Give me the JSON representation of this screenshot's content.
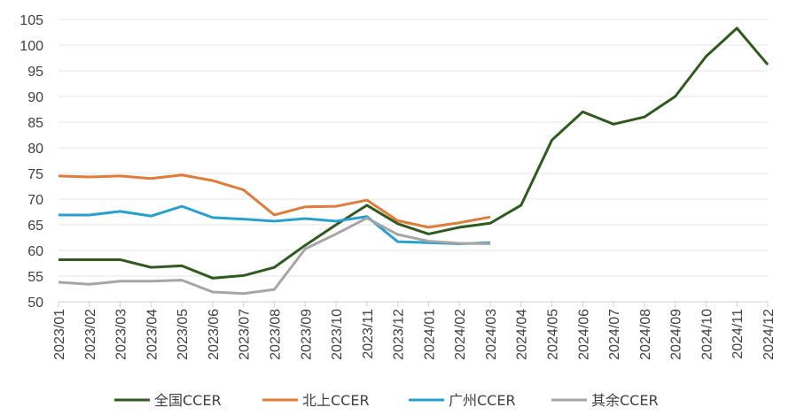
{
  "chart_data": {
    "type": "line",
    "title": "",
    "xlabel": "",
    "ylabel": "",
    "ylim": [
      50,
      105
    ],
    "y_ticks": [
      50,
      55,
      60,
      65,
      70,
      75,
      80,
      85,
      90,
      95,
      100,
      105
    ],
    "grid": "horizontal",
    "legend_position": "bottom",
    "categories": [
      "2023/01",
      "2023/02",
      "2023/03",
      "2023/04",
      "2023/05",
      "2023/06",
      "2023/07",
      "2023/08",
      "2023/09",
      "2023/10",
      "2023/11",
      "2023/12",
      "2024/01",
      "2024/02",
      "2024/03",
      "2024/04",
      "2024/05",
      "2024/06",
      "2024/07",
      "2024/08",
      "2024/09",
      "2024/10",
      "2024/11",
      "2024/12"
    ],
    "series": [
      {
        "name": "全国CCER",
        "color": "#2e5b1e",
        "values": [
          58.2,
          58.2,
          58.2,
          56.7,
          57.0,
          54.6,
          55.1,
          56.7,
          61.0,
          65.0,
          68.8,
          65.2,
          63.2,
          64.5,
          65.3,
          68.8,
          81.5,
          87.0,
          84.6,
          86.0,
          90.0,
          97.8,
          103.3,
          96.2
        ]
      },
      {
        "name": "北上CCER",
        "color": "#e07b39",
        "values": [
          74.5,
          74.3,
          74.5,
          74.0,
          74.7,
          73.6,
          71.8,
          66.9,
          68.5,
          68.6,
          69.8,
          65.8,
          64.5,
          65.4,
          66.5,
          null,
          null,
          null,
          null,
          null,
          null,
          null,
          null,
          null
        ]
      },
      {
        "name": "广州CCER",
        "color": "#26a0d0",
        "values": [
          66.9,
          66.9,
          67.6,
          66.7,
          68.6,
          66.4,
          66.1,
          65.7,
          66.2,
          65.7,
          66.6,
          61.7,
          61.5,
          61.3,
          61.5,
          null,
          null,
          null,
          null,
          null,
          null,
          null,
          null,
          null
        ]
      },
      {
        "name": "其余CCER",
        "color": "#a6a6a6",
        "values": [
          53.8,
          53.4,
          54.0,
          54.0,
          54.2,
          51.9,
          51.6,
          52.4,
          60.3,
          63.2,
          66.3,
          63.1,
          61.8,
          61.4,
          61.3,
          null,
          null,
          null,
          null,
          null,
          null,
          null,
          null,
          null
        ]
      }
    ]
  }
}
